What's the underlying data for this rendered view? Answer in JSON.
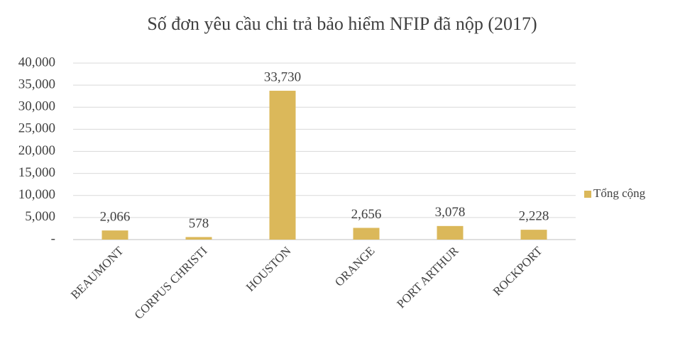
{
  "chart_data": {
    "type": "bar",
    "title": "Số đơn yêu cầu chi trả bảo hiểm NFIP đã nộp (2017)",
    "categories": [
      "BEAUMONT",
      "CORPUS CHRISTI",
      "HOUSTON",
      "ORANGE",
      "PORT ARTHUR",
      "ROCKPORT"
    ],
    "series": [
      {
        "name": "Tổng cộng",
        "color": "#dbb85a",
        "values": [
          2066,
          578,
          33730,
          2656,
          3078,
          2228
        ],
        "value_labels": [
          "2,066",
          "578",
          "33,730",
          "2,656",
          "3,078",
          "2,228"
        ]
      }
    ],
    "ylim": [
      0,
      40000
    ],
    "yticks": [
      {
        "value": 0,
        "label": "-"
      },
      {
        "value": 5000,
        "label": "5,000"
      },
      {
        "value": 10000,
        "label": "10,000"
      },
      {
        "value": 15000,
        "label": "15,000"
      },
      {
        "value": 20000,
        "label": "20,000"
      },
      {
        "value": 25000,
        "label": "25,000"
      },
      {
        "value": 30000,
        "label": "30,000"
      },
      {
        "value": 35000,
        "label": "35,000"
      },
      {
        "value": 40000,
        "label": "40,000"
      }
    ],
    "grid": true,
    "legend": "right"
  }
}
